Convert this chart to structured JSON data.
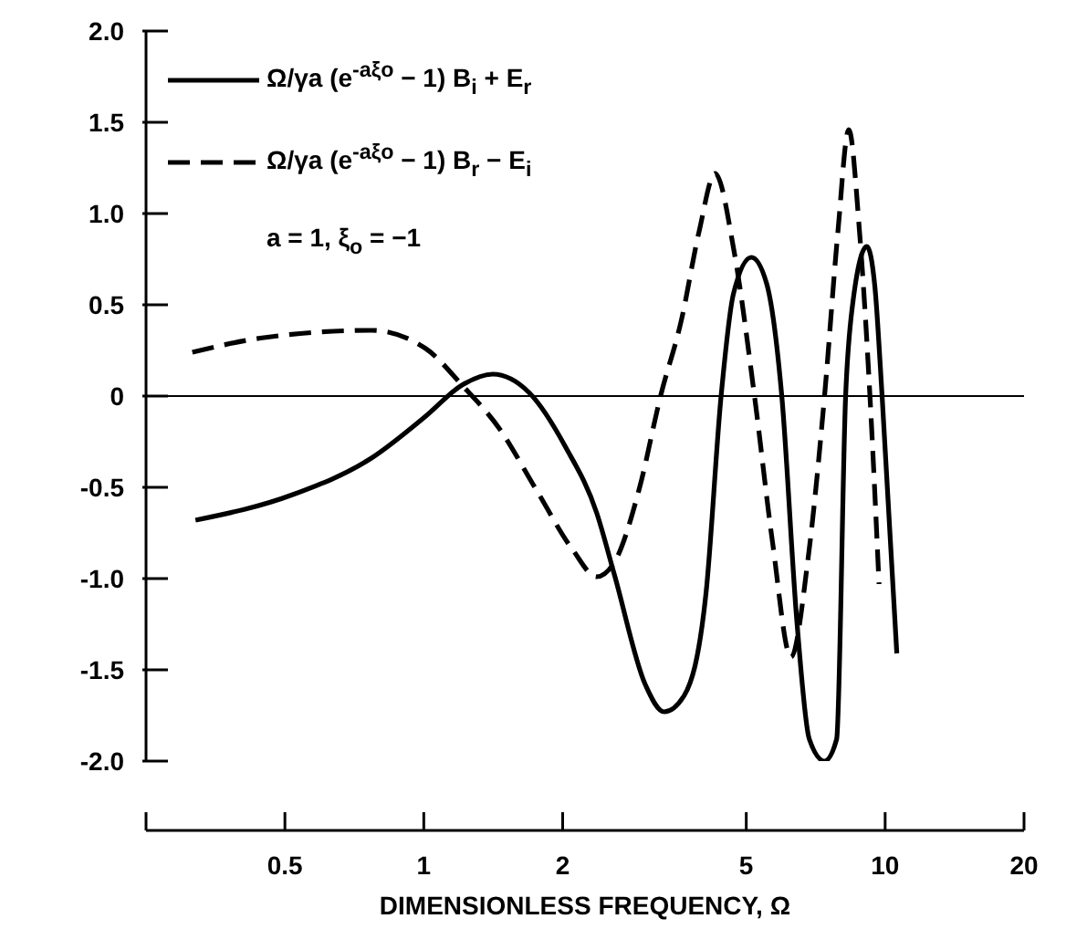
{
  "chart_data": {
    "type": "line",
    "xlabel": "DIMENSIONLESS FREQUENCY, Ω",
    "log": "x",
    "legend": "top left",
    "marker": "none",
    "annotations": [
      "a = 1, ξ$_{o}$ = −1"
    ],
    "xlim": [
      0.25,
      20
    ],
    "xticks": [
      {
        "value": 0.25,
        "label": null
      },
      0.5,
      1,
      2,
      5,
      10,
      20
    ],
    "ylim": [
      -2,
      2
    ],
    "yticks": [
      {
        "value": -2,
        "label": "-2.0"
      },
      {
        "value": -1.5,
        "label": "-1.5"
      },
      {
        "value": -1,
        "label": "-1.0"
      },
      {
        "value": -0.5,
        "label": "-0.5"
      },
      0,
      {
        "value": 0.5,
        "label": "0.5"
      },
      {
        "value": 1,
        "label": "1.0"
      },
      {
        "value": 1.5,
        "label": "1.5"
      },
      {
        "value": 2,
        "label": "2.0"
      }
    ],
    "ref_lines": [
      {
        "axis": "y",
        "value": 0,
        "color": "#000000"
      }
    ],
    "series": [
      {
        "name": "Ω/γa (e$^{-aξo}$ − 1) B$_{i}$ + E$_{r}$",
        "color": "#000000",
        "line_style": "solid",
        "x": [
          0.32,
          0.52,
          0.77,
          1.01,
          1.21,
          1.41,
          1.69,
          2.03,
          2.37,
          2.59,
          3.02,
          3.32,
          3.67,
          4.09,
          4.41,
          4.69,
          5.13,
          5.53,
          5.97,
          6.44,
          6.85,
          7.39,
          7.85,
          8.21,
          8.5,
          9.13,
          9.5,
          9.85,
          10.6
        ],
        "values": [
          -0.68,
          -0.54,
          -0.34,
          -0.11,
          0.06,
          0.12,
          0.02,
          -0.28,
          -0.64,
          -0.98,
          -1.58,
          -1.73,
          -1.64,
          -1.08,
          0,
          0.56,
          0.76,
          0.62,
          0,
          -1.24,
          -1.88,
          -2.0,
          -1.88,
          0,
          0.5,
          0.82,
          0.6,
          0,
          -1.41
        ]
      },
      {
        "name": "Ω/γa (e$^{-aξo}$ − 1) B$_{r}$ − E$_{i}$",
        "color": "#000000",
        "line_style": "dashed",
        "x": [
          0.315,
          0.45,
          0.77,
          1.01,
          1.21,
          1.46,
          1.75,
          2.1,
          2.37,
          2.59,
          2.93,
          3.26,
          3.62,
          3.95,
          4.28,
          4.7,
          5.21,
          5.7,
          6.25,
          6.8,
          7.39,
          7.9,
          8.34,
          8.8,
          9.27,
          9.7
        ],
        "values": [
          0.24,
          0.32,
          0.36,
          0.26,
          0.06,
          -0.18,
          -0.51,
          -0.84,
          -0.99,
          -0.91,
          -0.51,
          0,
          0.42,
          0.9,
          1.22,
          0.8,
          0,
          -0.8,
          -1.43,
          -0.9,
          0,
          0.9,
          1.46,
          0.9,
          0,
          -1.03
        ]
      }
    ]
  }
}
